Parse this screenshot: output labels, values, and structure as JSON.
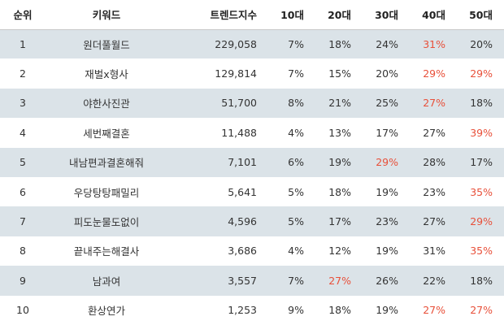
{
  "table": {
    "headers": [
      "순위",
      "키워드",
      "트렌드지수",
      "10대",
      "20대",
      "30대",
      "40대",
      "50대"
    ],
    "highlight_color": "#e8503a",
    "rows": [
      {
        "rank": "1",
        "keyword": "원더풀월드",
        "index": "229,058",
        "age10": "7%",
        "age20": "18%",
        "age30": "24%",
        "age40": "31%",
        "age50": "20%",
        "highlight": [
          "age40"
        ]
      },
      {
        "rank": "2",
        "keyword": "재벌x형사",
        "index": "129,814",
        "age10": "7%",
        "age20": "15%",
        "age30": "20%",
        "age40": "29%",
        "age50": "29%",
        "highlight": [
          "age40",
          "age50"
        ]
      },
      {
        "rank": "3",
        "keyword": "야한사진관",
        "index": "51,700",
        "age10": "8%",
        "age20": "21%",
        "age30": "25%",
        "age40": "27%",
        "age50": "18%",
        "highlight": [
          "age40"
        ]
      },
      {
        "rank": "4",
        "keyword": "세번째결혼",
        "index": "11,488",
        "age10": "4%",
        "age20": "13%",
        "age30": "17%",
        "age40": "27%",
        "age50": "39%",
        "highlight": [
          "age50"
        ]
      },
      {
        "rank": "5",
        "keyword": "내남편과결혼해줘",
        "index": "7,101",
        "age10": "6%",
        "age20": "19%",
        "age30": "29%",
        "age40": "28%",
        "age50": "17%",
        "highlight": [
          "age30"
        ]
      },
      {
        "rank": "6",
        "keyword": "우당탕탕패밀리",
        "index": "5,641",
        "age10": "5%",
        "age20": "18%",
        "age30": "19%",
        "age40": "23%",
        "age50": "35%",
        "highlight": [
          "age50"
        ]
      },
      {
        "rank": "7",
        "keyword": "피도눈물도없이",
        "index": "4,596",
        "age10": "5%",
        "age20": "17%",
        "age30": "23%",
        "age40": "27%",
        "age50": "29%",
        "highlight": [
          "age50"
        ]
      },
      {
        "rank": "8",
        "keyword": "끝내주는해결사",
        "index": "3,686",
        "age10": "4%",
        "age20": "12%",
        "age30": "19%",
        "age40": "31%",
        "age50": "35%",
        "highlight": [
          "age50"
        ]
      },
      {
        "rank": "9",
        "keyword": "남과여",
        "index": "3,557",
        "age10": "7%",
        "age20": "27%",
        "age30": "26%",
        "age40": "22%",
        "age50": "18%",
        "highlight": [
          "age20"
        ]
      },
      {
        "rank": "10",
        "keyword": "환상연가",
        "index": "1,253",
        "age10": "9%",
        "age20": "18%",
        "age30": "19%",
        "age40": "27%",
        "age50": "27%",
        "highlight": [
          "age40",
          "age50"
        ]
      }
    ]
  }
}
